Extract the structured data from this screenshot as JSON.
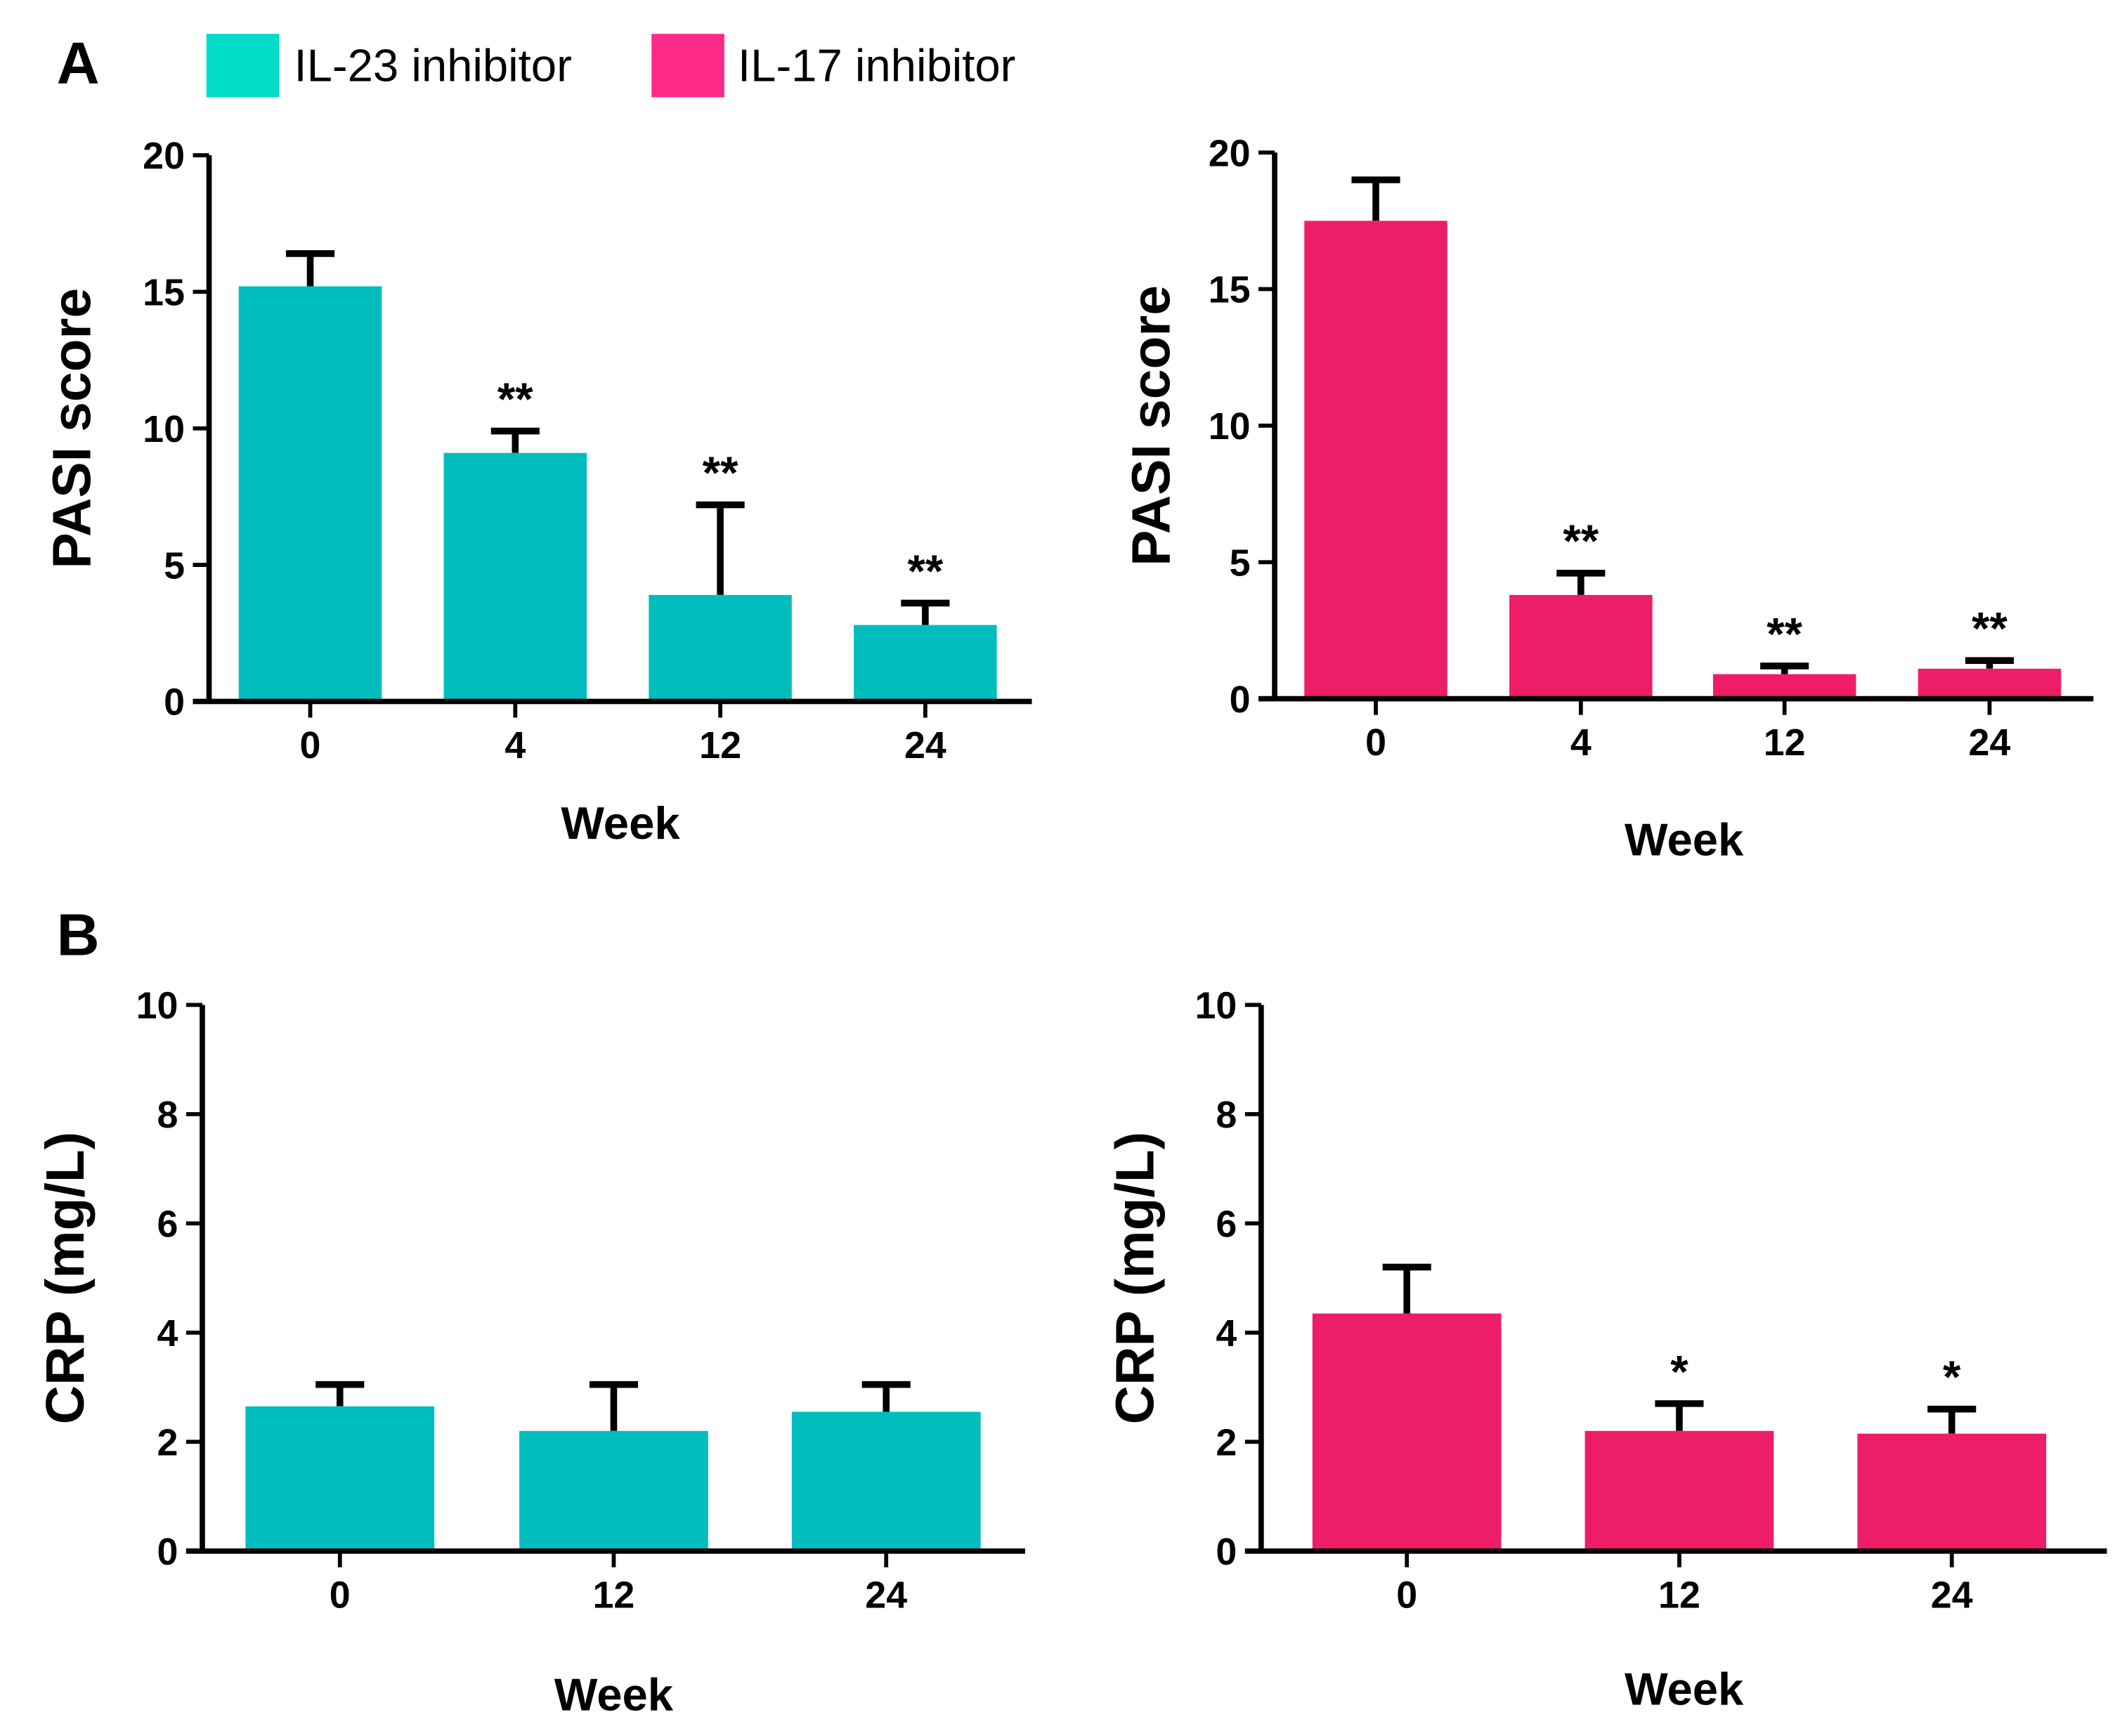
{
  "panels": {
    "a": "A",
    "b": "B"
  },
  "legend": [
    {
      "label": "IL-23 inhibitor",
      "color": "#00DCC8"
    },
    {
      "label": "IL-17 inhibitor",
      "color": "#FF2A88"
    }
  ],
  "chart_data": [
    {
      "type": "bar",
      "panel": "A",
      "title": "",
      "xlabel": "Week",
      "ylabel": "PASI score",
      "color": "#00BDBD",
      "categories": [
        "0",
        "4",
        "12",
        "24"
      ],
      "values": [
        15.2,
        9.1,
        3.9,
        2.8
      ],
      "errors": [
        1.2,
        0.8,
        3.3,
        0.8
      ],
      "significance": [
        "",
        "**",
        "**",
        "**"
      ],
      "ylim": [
        0,
        20
      ],
      "yticks": [
        "0",
        "5",
        "10",
        "15",
        "20"
      ],
      "series": "IL-23 inhibitor"
    },
    {
      "type": "bar",
      "panel": "A",
      "title": "",
      "xlabel": "Week",
      "ylabel": "PASI score",
      "color": "#EE1D67",
      "categories": [
        "0",
        "4",
        "12",
        "24"
      ],
      "values": [
        17.5,
        3.8,
        0.9,
        1.1
      ],
      "errors": [
        1.5,
        0.8,
        0.3,
        0.3
      ],
      "significance": [
        "",
        "**",
        "**",
        "**"
      ],
      "ylim": [
        0,
        20
      ],
      "yticks": [
        "0",
        "5",
        "10",
        "15",
        "20"
      ],
      "series": "IL-17 inhibitor"
    },
    {
      "type": "bar",
      "panel": "B",
      "title": "",
      "xlabel": "Week",
      "ylabel": "CRP (mg/L)",
      "color": "#00BDBD",
      "categories": [
        "0",
        "12",
        "24"
      ],
      "values": [
        2.65,
        2.2,
        2.55
      ],
      "errors": [
        0.4,
        0.85,
        0.5
      ],
      "significance": [
        "",
        "",
        ""
      ],
      "ylim": [
        0,
        10
      ],
      "yticks": [
        "0",
        "2",
        "4",
        "6",
        "8",
        "10"
      ],
      "series": "IL-23 inhibitor"
    },
    {
      "type": "bar",
      "panel": "B",
      "title": "",
      "xlabel": "Week",
      "ylabel": "CRP (mg/L)",
      "color": "#EE1D67",
      "categories": [
        "0",
        "12",
        "24"
      ],
      "values": [
        4.35,
        2.2,
        2.15
      ],
      "errors": [
        0.85,
        0.5,
        0.45
      ],
      "significance": [
        "",
        "*",
        "*"
      ],
      "ylim": [
        0,
        10
      ],
      "yticks": [
        "0",
        "2",
        "4",
        "6",
        "8",
        "10"
      ],
      "series": "IL-17 inhibitor"
    }
  ]
}
